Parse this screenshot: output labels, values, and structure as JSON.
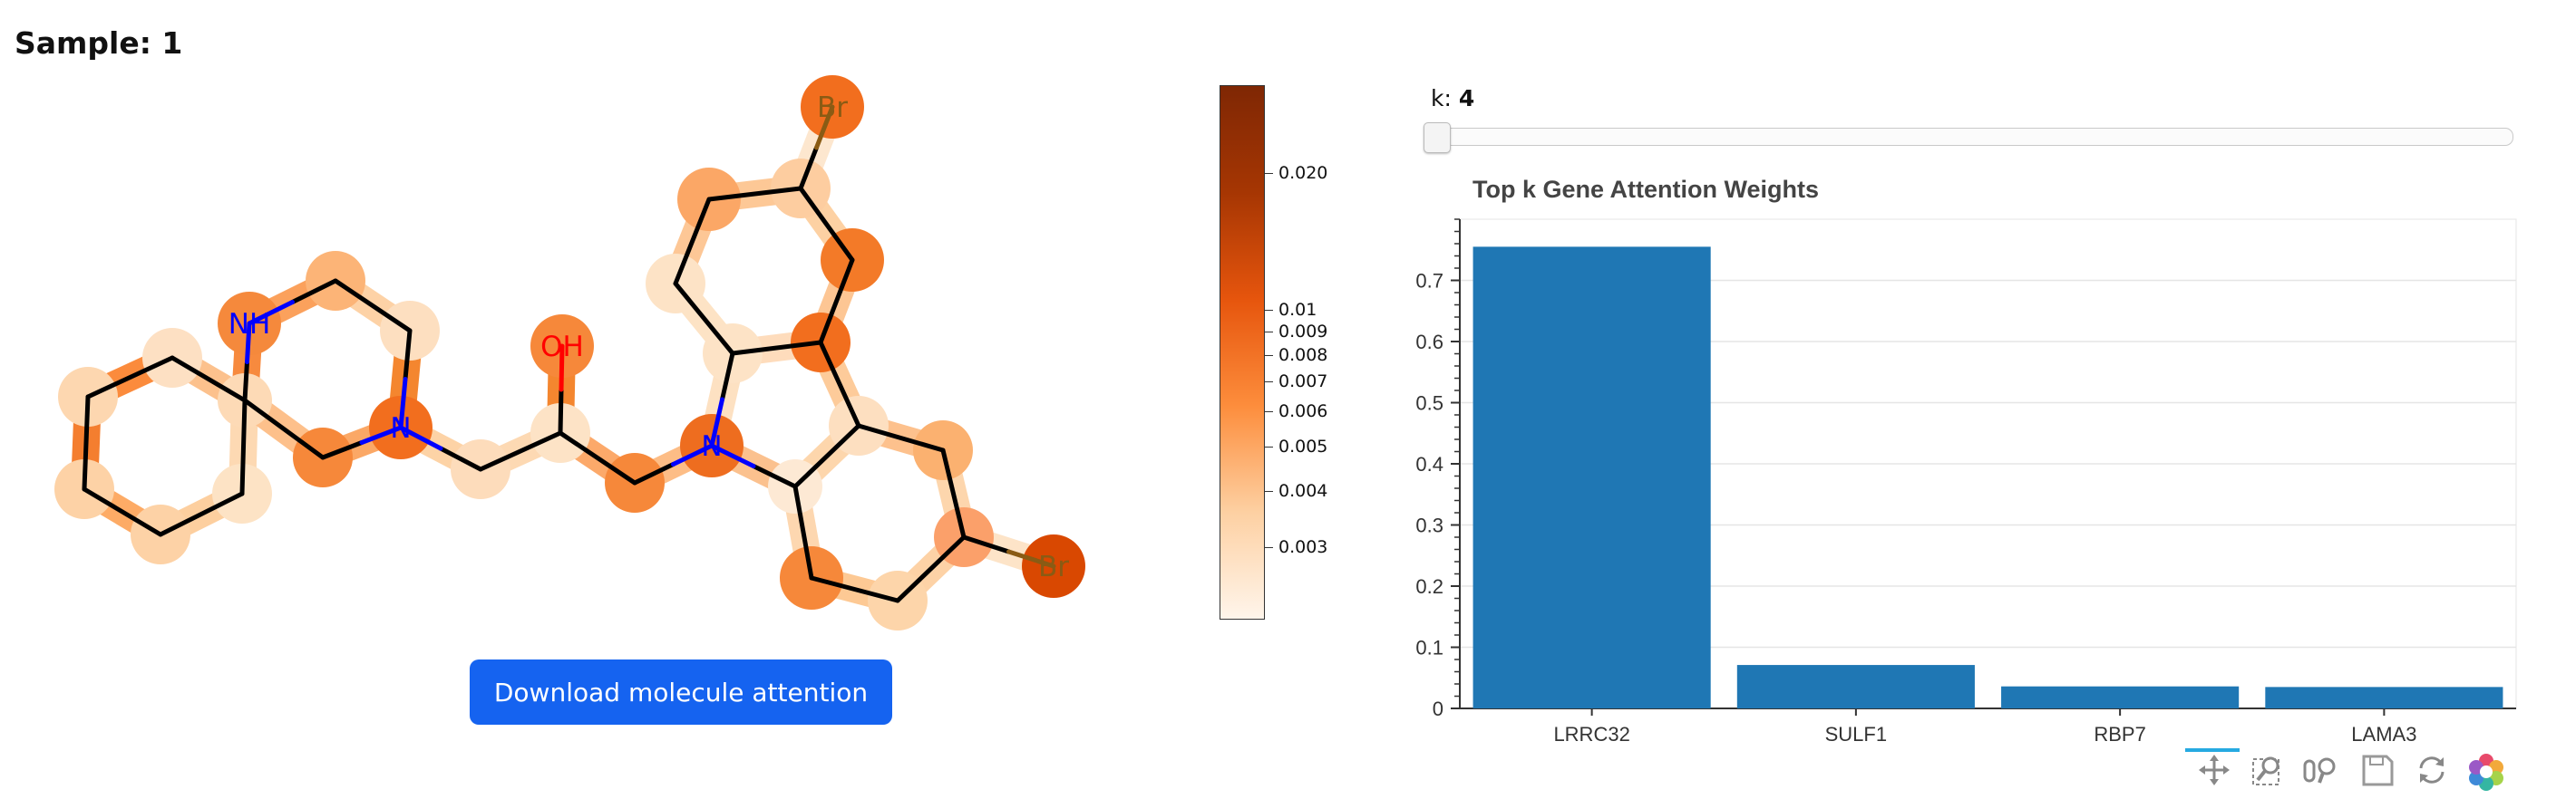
{
  "sample": {
    "title": "Sample: 1"
  },
  "molecule": {
    "atom_labels": {
      "nh": "NH",
      "n1": "N",
      "oh": "OH",
      "n2": "N",
      "br1": "Br",
      "br2": "Br"
    },
    "colors": {
      "bond": "#000000",
      "nitrogen": "#0000ff",
      "oxygen": "#ff0000",
      "bromine": "#8a5b14"
    }
  },
  "colorbar": {
    "scale": "log",
    "colors": [
      "#fff5eb",
      "#fdd0a2",
      "#fd8d3c",
      "#e6550d",
      "#a63603",
      "#7f2704"
    ],
    "ticks": [
      "0.020",
      "0.01",
      "0.009",
      "0.008",
      "0.007",
      "0.006",
      "0.005",
      "0.004",
      "0.003"
    ]
  },
  "download": {
    "label": "Download molecule attention"
  },
  "slider": {
    "label": "k:",
    "value": "4"
  },
  "chart_data": {
    "type": "bar",
    "title": "Top k Gene Attention Weights",
    "categories": [
      "LRRC32",
      "SULF1",
      "RBP7",
      "LAMA3"
    ],
    "values": [
      0.755,
      0.071,
      0.036,
      0.035
    ],
    "ylim": [
      0,
      0.8
    ],
    "yticks": [
      0,
      0.1,
      0.2,
      0.3,
      0.4,
      0.5,
      0.6,
      0.7
    ],
    "ytick_labels": [
      "0",
      "0.1",
      "0.2",
      "0.3",
      "0.4",
      "0.5",
      "0.6",
      "0.7"
    ],
    "grid": true,
    "bar_color": "#1f77b4"
  },
  "toolbar": {
    "tools": [
      "pan-icon",
      "box-zoom-icon",
      "wheel-zoom-icon",
      "save-icon",
      "reset-icon",
      "bokeh-logo-icon"
    ]
  }
}
